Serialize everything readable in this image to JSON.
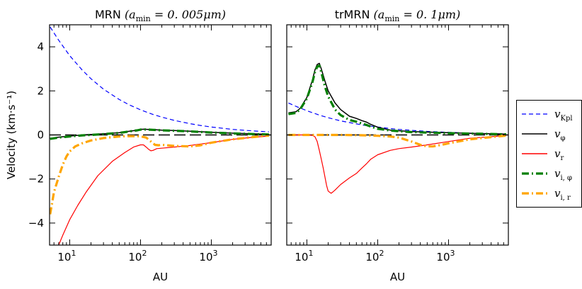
{
  "chart_data": [
    {
      "type": "line",
      "title": "MRN (a_min = 0.005μm)",
      "title_main": "MRN",
      "title_param": "(a",
      "title_sub": "min",
      "title_val": " = 0. 005μm)",
      "xlabel": "AU",
      "ylabel": "Velocity (km·s⁻¹)",
      "xscale": "log",
      "xlim": [
        5.2,
        7000
      ],
      "ylim": [
        -5,
        5
      ],
      "x_ticks": [
        {
          "value": 10,
          "base": "10",
          "exp": "1"
        },
        {
          "value": 100,
          "base": "10",
          "exp": "2"
        },
        {
          "value": 1000,
          "base": "10",
          "exp": "3"
        }
      ],
      "y_ticks": [
        {
          "value": 4,
          "label": "4"
        },
        {
          "value": 2,
          "label": "2"
        },
        {
          "value": 0,
          "label": "0"
        },
        {
          "value": -2,
          "label": "−2"
        },
        {
          "value": -4,
          "label": "−4"
        }
      ],
      "series": [
        {
          "name": "v_Kpl",
          "x": [
            5.3,
            7,
            10,
            15,
            20,
            30,
            50,
            70,
            100,
            150,
            200,
            300,
            500,
            700,
            1000,
            2000,
            3000,
            5000,
            6500
          ],
          "y": [
            4.9,
            4.3,
            3.6,
            2.95,
            2.55,
            2.08,
            1.61,
            1.36,
            1.14,
            0.93,
            0.81,
            0.66,
            0.51,
            0.43,
            0.36,
            0.25,
            0.21,
            0.16,
            0.14
          ]
        },
        {
          "name": "v_φ",
          "x": [
            5.3,
            7,
            10,
            15,
            20,
            30,
            50,
            70,
            90,
            100,
            110,
            130,
            150,
            200,
            300,
            500,
            1000,
            2000,
            5000,
            6500
          ],
          "y": [
            -0.15,
            -0.1,
            -0.05,
            0.0,
            0.02,
            0.05,
            0.1,
            0.17,
            0.22,
            0.25,
            0.26,
            0.25,
            0.24,
            0.22,
            0.2,
            0.17,
            0.12,
            0.08,
            0.04,
            0.03
          ]
        },
        {
          "name": "v_r",
          "x": [
            7,
            8,
            10,
            13,
            17,
            25,
            40,
            60,
            80,
            100,
            110,
            120,
            130,
            140,
            150,
            170,
            200,
            300,
            500,
            1000,
            2000,
            4000,
            6500
          ],
          "y": [
            -5.0,
            -4.55,
            -3.85,
            -3.2,
            -2.6,
            -1.85,
            -1.2,
            -0.8,
            -0.55,
            -0.45,
            -0.45,
            -0.55,
            -0.65,
            -0.72,
            -0.7,
            -0.62,
            -0.6,
            -0.55,
            -0.48,
            -0.35,
            -0.2,
            -0.1,
            -0.05
          ]
        },
        {
          "name": "v_i,φ",
          "x": [
            5.3,
            7,
            10,
            15,
            20,
            30,
            50,
            70,
            90,
            100,
            110,
            130,
            150,
            200,
            300,
            500,
            1000,
            2000,
            5000,
            6500
          ],
          "y": [
            -0.18,
            -0.12,
            -0.07,
            -0.02,
            0.0,
            0.04,
            0.09,
            0.16,
            0.21,
            0.24,
            0.25,
            0.24,
            0.23,
            0.21,
            0.19,
            0.16,
            0.11,
            0.07,
            0.03,
            0.02
          ]
        },
        {
          "name": "v_i,r",
          "x": [
            5.3,
            6,
            7,
            8,
            9,
            10,
            12,
            15,
            20,
            30,
            50,
            70,
            100,
            120,
            140,
            160,
            180,
            200,
            300,
            500,
            700,
            1000,
            2000,
            5000,
            6500
          ],
          "y": [
            -3.6,
            -2.6,
            -1.9,
            -1.35,
            -0.98,
            -0.75,
            -0.52,
            -0.38,
            -0.25,
            -0.14,
            -0.07,
            -0.05,
            -0.06,
            -0.12,
            -0.3,
            -0.45,
            -0.47,
            -0.45,
            -0.5,
            -0.52,
            -0.47,
            -0.35,
            -0.2,
            -0.06,
            -0.03
          ]
        }
      ]
    },
    {
      "type": "line",
      "title": "trMRN (a_min = 0.1μm)",
      "title_main": "trMRN",
      "title_param": "(a",
      "title_sub": "min",
      "title_val": " = 0. 1μm)",
      "xlabel": "AU",
      "xscale": "log",
      "xlim": [
        5.2,
        7000
      ],
      "ylim": [
        -5,
        5
      ],
      "x_ticks": [
        {
          "value": 10,
          "base": "10",
          "exp": "1"
        },
        {
          "value": 100,
          "base": "10",
          "exp": "2"
        },
        {
          "value": 1000,
          "base": "10",
          "exp": "3"
        }
      ],
      "series": [
        {
          "name": "v_Kpl",
          "x": [
            5.5,
            7,
            10,
            15,
            20,
            30,
            50,
            70,
            100,
            150,
            200,
            300,
            500,
            1000,
            2000,
            5000,
            6500
          ],
          "y": [
            1.45,
            1.3,
            1.1,
            0.9,
            0.78,
            0.64,
            0.5,
            0.42,
            0.36,
            0.29,
            0.25,
            0.21,
            0.16,
            0.12,
            0.08,
            0.05,
            0.04
          ]
        },
        {
          "name": "v_φ",
          "x": [
            5.5,
            7,
            8,
            10,
            12,
            13,
            14,
            15,
            16,
            18,
            20,
            25,
            30,
            40,
            50,
            60,
            70,
            80,
            100,
            150,
            300,
            1000,
            3000,
            6500
          ],
          "y": [
            1.0,
            1.05,
            1.2,
            1.7,
            2.5,
            2.95,
            3.2,
            3.25,
            3.0,
            2.45,
            2.0,
            1.45,
            1.15,
            0.85,
            0.75,
            0.65,
            0.58,
            0.48,
            0.35,
            0.22,
            0.15,
            0.1,
            0.06,
            0.04
          ]
        },
        {
          "name": "v_r",
          "x": [
            5.5,
            10,
            12,
            13,
            14,
            15,
            16,
            17,
            18,
            19,
            20,
            22,
            23,
            25,
            30,
            40,
            50,
            60,
            70,
            80,
            100,
            150,
            200,
            300,
            500,
            1000,
            2000,
            6500
          ],
          "y": [
            0.0,
            0.0,
            -0.02,
            -0.08,
            -0.3,
            -0.7,
            -1.1,
            -1.5,
            -1.9,
            -2.3,
            -2.55,
            -2.65,
            -2.6,
            -2.5,
            -2.25,
            -1.95,
            -1.75,
            -1.5,
            -1.3,
            -1.1,
            -0.9,
            -0.7,
            -0.62,
            -0.55,
            -0.45,
            -0.3,
            -0.15,
            -0.03
          ]
        },
        {
          "name": "v_i,φ",
          "x": [
            5.5,
            7,
            8,
            10,
            12,
            13,
            14,
            15,
            16,
            18,
            20,
            25,
            30,
            40,
            50,
            60,
            70,
            80,
            100,
            150,
            300,
            1000,
            3000,
            6500
          ],
          "y": [
            0.95,
            1.0,
            1.15,
            1.65,
            2.4,
            2.85,
            3.1,
            3.15,
            2.85,
            2.2,
            1.75,
            1.15,
            0.9,
            0.68,
            0.6,
            0.52,
            0.45,
            0.38,
            0.28,
            0.2,
            0.13,
            0.08,
            0.05,
            0.03
          ]
        },
        {
          "name": "v_i,r",
          "x": [
            5.5,
            30,
            50,
            70,
            100,
            150,
            200,
            300,
            400,
            500,
            600,
            800,
            1000,
            2000,
            6500
          ],
          "y": [
            0.0,
            0.0,
            -0.01,
            -0.02,
            -0.04,
            -0.07,
            -0.12,
            -0.3,
            -0.45,
            -0.52,
            -0.52,
            -0.45,
            -0.38,
            -0.2,
            -0.03
          ]
        }
      ]
    }
  ],
  "legend": {
    "placement": "right",
    "entries": [
      {
        "base": "v",
        "sub": "Kpl",
        "style": "dashed",
        "color": "#0000ff"
      },
      {
        "base": "v",
        "sub": "φ",
        "style": "solid",
        "color": "#000000"
      },
      {
        "base": "v",
        "sub": "r",
        "style": "solid",
        "color": "#ff0000"
      },
      {
        "base": "v",
        "sub": "i, φ",
        "style": "dashdot-thick",
        "color": "#007f00"
      },
      {
        "base": "v",
        "sub": "i, r",
        "style": "dashdot-thick",
        "color": "#ffa500"
      }
    ]
  },
  "colors": {
    "v_Kpl": "#0000ff",
    "v_phi": "#000000",
    "v_r": "#ff0000",
    "v_i_phi": "#007f00",
    "v_i_r": "#ffa500"
  }
}
